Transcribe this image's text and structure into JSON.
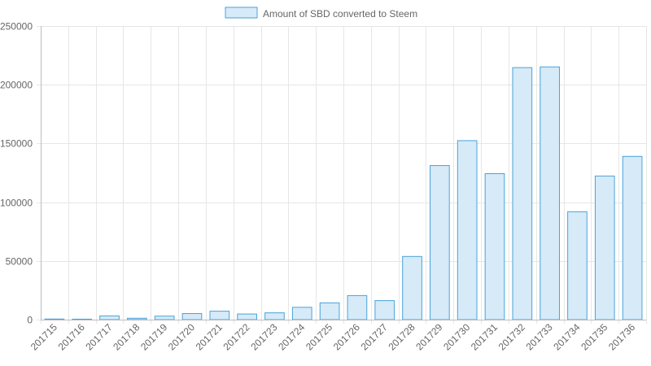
{
  "chart_data": {
    "type": "bar",
    "categories": [
      "201715",
      "201716",
      "201717",
      "201718",
      "201719",
      "201720",
      "201721",
      "201722",
      "201723",
      "201724",
      "201725",
      "201726",
      "201727",
      "201728",
      "201729",
      "201730",
      "201731",
      "201732",
      "201733",
      "201734",
      "201735",
      "201736"
    ],
    "series": [
      {
        "name": "Amount of SBD converted to Steem",
        "values": [
          500,
          400,
          3200,
          1200,
          3000,
          5200,
          7200,
          4800,
          5800,
          10500,
          14300,
          20500,
          16200,
          53800,
          131200,
          152400,
          124300,
          214600,
          215200,
          91900,
          122300,
          139000
        ]
      }
    ],
    "ylim": [
      0,
      250000
    ],
    "yticks": [
      0,
      50000,
      100000,
      150000,
      200000,
      250000
    ],
    "grid": true,
    "legend": "top-center",
    "colors": {
      "bar_fill": "#d6eaf8",
      "bar_stroke": "#4aa3d9",
      "grid": "#e6e6e6",
      "axis": "#bdbdbd"
    }
  }
}
